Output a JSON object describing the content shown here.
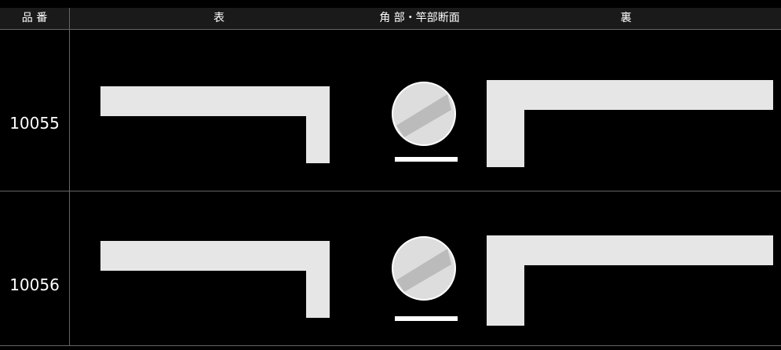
{
  "header": {
    "columns": [
      "品 番",
      "表",
      "角 部・竿部断面",
      "裏"
    ]
  },
  "table": {
    "rows": [
      {
        "code": "10055"
      },
      {
        "code": "10056"
      }
    ]
  }
}
